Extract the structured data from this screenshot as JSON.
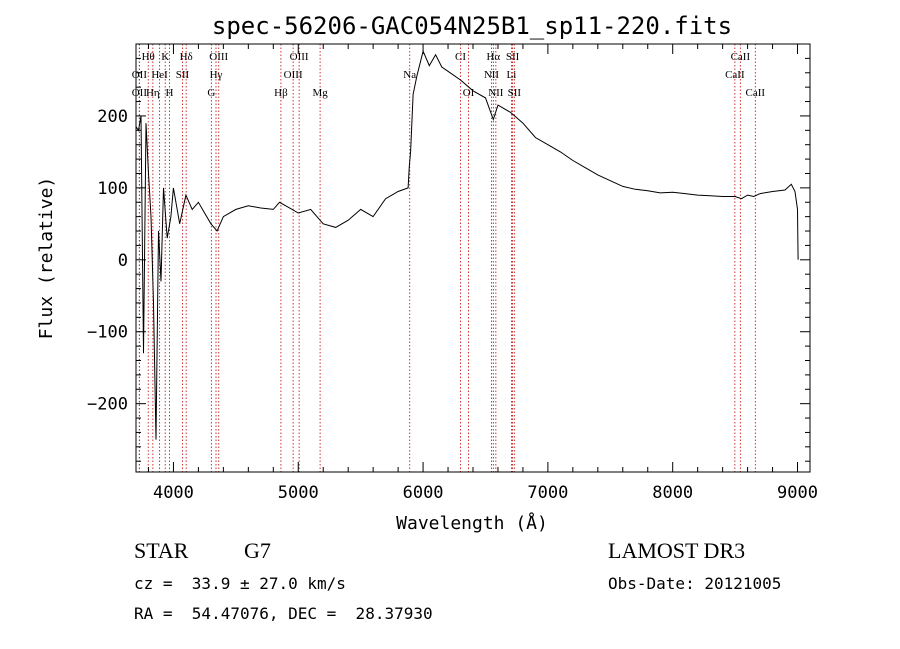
{
  "chart_data": {
    "type": "line",
    "title": "spec-56206-GAC054N25B1_sp11-220.fits",
    "xlabel": "Wavelength (Å)",
    "ylabel": "Flux (relative)",
    "xlim": [
      3700,
      9100
    ],
    "ylim": [
      -295,
      300
    ],
    "xticks": [
      4000,
      5000,
      6000,
      7000,
      8000,
      9000
    ],
    "yticks": [
      -200,
      -100,
      0,
      100,
      200
    ],
    "grid": false,
    "series": [
      {
        "name": "spectrum",
        "x": [
          3700,
          3720,
          3740,
          3760,
          3780,
          3800,
          3820,
          3840,
          3860,
          3880,
          3900,
          3920,
          3950,
          3980,
          4000,
          4050,
          4100,
          4150,
          4200,
          4250,
          4300,
          4350,
          4400,
          4500,
          4600,
          4700,
          4800,
          4850,
          4900,
          5000,
          5100,
          5200,
          5300,
          5400,
          5500,
          5600,
          5700,
          5800,
          5880,
          5890,
          5900,
          5920,
          5950,
          6000,
          6050,
          6100,
          6150,
          6200,
          6300,
          6400,
          6500,
          6563,
          6600,
          6700,
          6800,
          6900,
          7000,
          7100,
          7200,
          7300,
          7400,
          7500,
          7600,
          7700,
          7800,
          7900,
          8000,
          8100,
          8200,
          8300,
          8400,
          8500,
          8550,
          8600,
          8650,
          8700,
          8800,
          8900,
          8950,
          8980,
          9000,
          9005
        ],
        "y": [
          185,
          180,
          200,
          -130,
          190,
          120,
          60,
          -60,
          -250,
          40,
          -30,
          100,
          30,
          60,
          100,
          50,
          90,
          70,
          80,
          65,
          50,
          40,
          60,
          70,
          75,
          72,
          70,
          80,
          75,
          65,
          70,
          50,
          45,
          55,
          70,
          60,
          85,
          95,
          100,
          130,
          150,
          230,
          255,
          290,
          270,
          285,
          268,
          262,
          250,
          235,
          225,
          195,
          215,
          205,
          190,
          170,
          160,
          150,
          138,
          128,
          118,
          110,
          102,
          98,
          96,
          93,
          94,
          92,
          90,
          89,
          88,
          88,
          85,
          90,
          88,
          92,
          95,
          97,
          105,
          95,
          70,
          0
        ]
      }
    ],
    "lines": [
      {
        "name": "OII",
        "wavelength": 3727,
        "row": 1
      },
      {
        "name": "Hθ",
        "wavelength": 3798,
        "row": 0
      },
      {
        "name": "OII",
        "wavelength": 3727,
        "row": 2
      },
      {
        "name": "Hη",
        "wavelength": 3835,
        "row": 2
      },
      {
        "name": "HeI",
        "wavelength": 3889,
        "row": 1
      },
      {
        "name": "K",
        "wavelength": 3934,
        "row": 0
      },
      {
        "name": "H",
        "wavelength": 3968,
        "row": 2
      },
      {
        "name": "SII",
        "wavelength": 4072,
        "row": 1
      },
      {
        "name": "Hδ",
        "wavelength": 4102,
        "row": 0
      },
      {
        "name": "OIII",
        "wavelength": 4363,
        "row": 0
      },
      {
        "name": "Hγ",
        "wavelength": 4341,
        "row": 1
      },
      {
        "name": "G",
        "wavelength": 4304,
        "row": 2
      },
      {
        "name": "Hβ",
        "wavelength": 4861,
        "row": 2
      },
      {
        "name": "OIII",
        "wavelength": 4959,
        "row": 1
      },
      {
        "name": "OIII",
        "wavelength": 5007,
        "row": 0
      },
      {
        "name": "Mg",
        "wavelength": 5175,
        "row": 2
      },
      {
        "name": "Na",
        "wavelength": 5893,
        "row": 1
      },
      {
        "name": "CI",
        "wavelength": 6300,
        "row": 0
      },
      {
        "name": "OI",
        "wavelength": 6364,
        "row": 2
      },
      {
        "name": "Hα",
        "wavelength": 6563,
        "row": 0
      },
      {
        "name": "NII",
        "wavelength": 6548,
        "row": 1
      },
      {
        "name": "NII",
        "wavelength": 6583,
        "row": 2
      },
      {
        "name": "SII",
        "wavelength": 6717,
        "row": 0
      },
      {
        "name": "Li",
        "wavelength": 6708,
        "row": 1
      },
      {
        "name": "SII",
        "wavelength": 6731,
        "row": 2
      },
      {
        "name": "CaII",
        "wavelength": 8498,
        "row": 1
      },
      {
        "name": "CaII",
        "wavelength": 8542,
        "row": 0
      },
      {
        "name": "CaII",
        "wavelength": 8662,
        "row": 2
      }
    ]
  },
  "info": {
    "object_class": "STAR",
    "subclass": "G7",
    "survey": "LAMOST DR3",
    "cz": "cz =  33.9 ± 27.0 km/s",
    "obs_date": "Obs-Date: 20121005",
    "coords": "RA =  54.47076, DEC =  28.37930"
  }
}
